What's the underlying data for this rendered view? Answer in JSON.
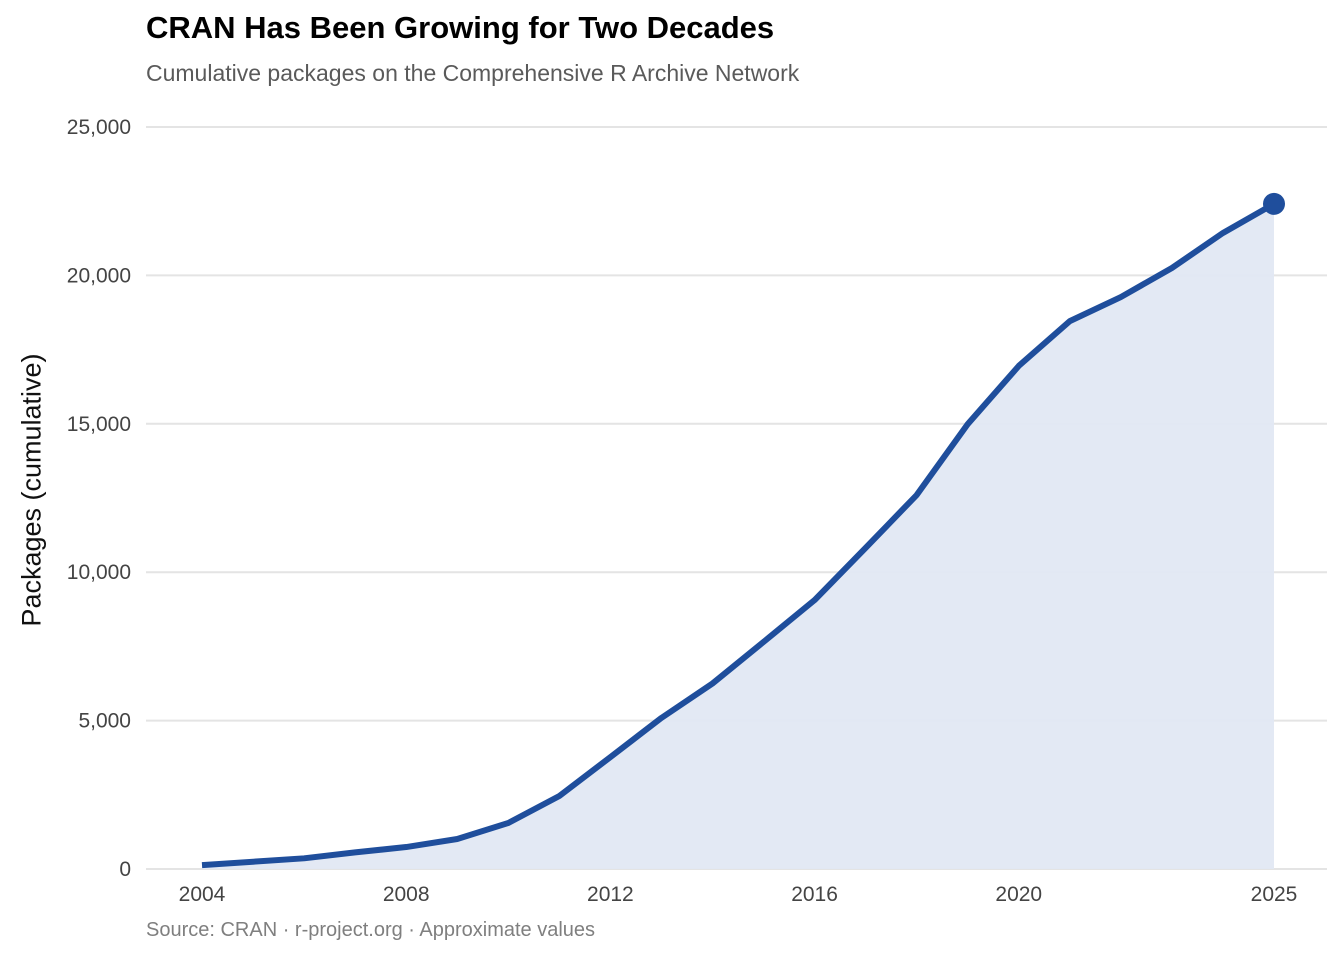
{
  "chart_data": {
    "type": "area",
    "title": "CRAN Has Been Growing for Two Decades",
    "subtitle": "Cumulative packages on the Comprehensive R Archive Network",
    "caption": "Source: CRAN · r-project.org · Approximate values",
    "xlabel": "",
    "ylabel": "Packages (cumulative)",
    "xlim": [
      2004,
      2025
    ],
    "ylim": [
      0,
      25000
    ],
    "x_ticks": [
      2004,
      2008,
      2012,
      2016,
      2020,
      2025
    ],
    "x_tick_labels": [
      "2004",
      "2008",
      "2012",
      "2016",
      "2020",
      "2025"
    ],
    "y_ticks": [
      0,
      5000,
      10000,
      15000,
      20000,
      25000
    ],
    "y_tick_labels": [
      "0",
      "5,000",
      "10,000",
      "15,000",
      "20,000",
      "25,000"
    ],
    "grid": "horizontal",
    "legend": "none",
    "series": [
      {
        "name": "Packages",
        "color": "#1f4e9c",
        "fill_color": "#e1e8f3",
        "x": [
          2004,
          2006,
          2007,
          2008,
          2009,
          2010,
          2011,
          2012,
          2013,
          2014,
          2015,
          2016,
          2017,
          2018,
          2019,
          2020,
          2021,
          2022,
          2023,
          2024,
          2025
        ],
        "values": [
          130,
          360,
          560,
          740,
          1010,
          1550,
          2460,
          3770,
          5090,
          6250,
          7650,
          9060,
          10820,
          12600,
          14990,
          16950,
          18460,
          19270,
          20250,
          21430,
          22410
        ]
      }
    ],
    "highlight_last_point": true
  }
}
